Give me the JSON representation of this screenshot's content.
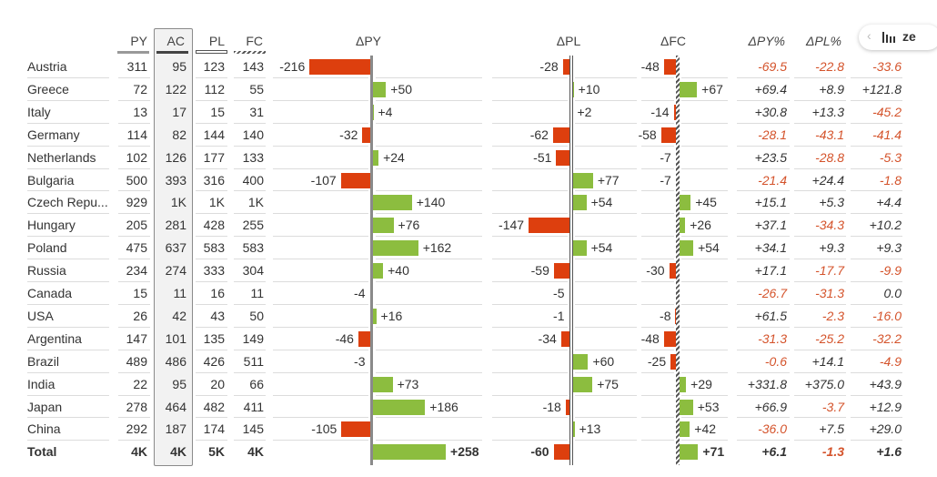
{
  "headers": {
    "py": "PY",
    "ac": "AC",
    "pl": "PL",
    "fc": "FC",
    "dpy": "ΔPY",
    "dpl": "ΔPL",
    "dfc": "ΔFC",
    "dpy_pct": "ΔPY%",
    "dpl_pct": "ΔPL%"
  },
  "toolbar": {
    "back_icon": "chevron-left-icon",
    "logo_icon": "zebra-bars-icon",
    "brand_text": "ze"
  },
  "colors": {
    "negative": "#dd3f0e",
    "positive": "#8cbd3f",
    "negative_text": "#d4532b"
  },
  "rows": [
    {
      "name": "Austria",
      "py": "311",
      "ac": "95",
      "pl": "123",
      "fc": "143",
      "dpy": "-216",
      "dpl": "-28",
      "dfc": "-48",
      "dpy_pct": "-69.5",
      "dpl_pct": "-22.8",
      "dfc_pct": "-33.6"
    },
    {
      "name": "Greece",
      "py": "72",
      "ac": "122",
      "pl": "112",
      "fc": "55",
      "dpy": "+50",
      "dpl": "+10",
      "dfc": "+67",
      "dpy_pct": "+69.4",
      "dpl_pct": "+8.9",
      "dfc_pct": "+121.8"
    },
    {
      "name": "Italy",
      "py": "13",
      "ac": "17",
      "pl": "15",
      "fc": "31",
      "dpy": "+4",
      "dpl": "+2",
      "dfc": "-14",
      "dpy_pct": "+30.8",
      "dpl_pct": "+13.3",
      "dfc_pct": "-45.2"
    },
    {
      "name": "Germany",
      "py": "114",
      "ac": "82",
      "pl": "144",
      "fc": "140",
      "dpy": "-32",
      "dpl": "-62",
      "dfc": "-58",
      "dpy_pct": "-28.1",
      "dpl_pct": "-43.1",
      "dfc_pct": "-41.4"
    },
    {
      "name": "Netherlands",
      "py": "102",
      "ac": "126",
      "pl": "177",
      "fc": "133",
      "dpy": "+24",
      "dpl": "-51",
      "dfc": "-7",
      "dpy_pct": "+23.5",
      "dpl_pct": "-28.8",
      "dfc_pct": "-5.3"
    },
    {
      "name": "Bulgaria",
      "py": "500",
      "ac": "393",
      "pl": "316",
      "fc": "400",
      "dpy": "-107",
      "dpl": "+77",
      "dfc": "-7",
      "dpy_pct": "-21.4",
      "dpl_pct": "+24.4",
      "dfc_pct": "-1.8"
    },
    {
      "name": "Czech Repu...",
      "py": "929",
      "ac": "1K",
      "pl": "1K",
      "fc": "1K",
      "dpy": "+140",
      "dpl": "+54",
      "dfc": "+45",
      "dpy_pct": "+15.1",
      "dpl_pct": "+5.3",
      "dfc_pct": "+4.4"
    },
    {
      "name": "Hungary",
      "py": "205",
      "ac": "281",
      "pl": "428",
      "fc": "255",
      "dpy": "+76",
      "dpl": "-147",
      "dfc": "+26",
      "dpy_pct": "+37.1",
      "dpl_pct": "-34.3",
      "dfc_pct": "+10.2"
    },
    {
      "name": "Poland",
      "py": "475",
      "ac": "637",
      "pl": "583",
      "fc": "583",
      "dpy": "+162",
      "dpl": "+54",
      "dfc": "+54",
      "dpy_pct": "+34.1",
      "dpl_pct": "+9.3",
      "dfc_pct": "+9.3"
    },
    {
      "name": "Russia",
      "py": "234",
      "ac": "274",
      "pl": "333",
      "fc": "304",
      "dpy": "+40",
      "dpl": "-59",
      "dfc": "-30",
      "dpy_pct": "+17.1",
      "dpl_pct": "-17.7",
      "dfc_pct": "-9.9"
    },
    {
      "name": "Canada",
      "py": "15",
      "ac": "11",
      "pl": "16",
      "fc": "11",
      "dpy": "-4",
      "dpl": "-5",
      "dfc": "",
      "dpy_pct": "-26.7",
      "dpl_pct": "-31.3",
      "dfc_pct": "0.0"
    },
    {
      "name": "USA",
      "py": "26",
      "ac": "42",
      "pl": "43",
      "fc": "50",
      "dpy": "+16",
      "dpl": "-1",
      "dfc": "-8",
      "dpy_pct": "+61.5",
      "dpl_pct": "-2.3",
      "dfc_pct": "-16.0"
    },
    {
      "name": "Argentina",
      "py": "147",
      "ac": "101",
      "pl": "135",
      "fc": "149",
      "dpy": "-46",
      "dpl": "-34",
      "dfc": "-48",
      "dpy_pct": "-31.3",
      "dpl_pct": "-25.2",
      "dfc_pct": "-32.2"
    },
    {
      "name": "Brazil",
      "py": "489",
      "ac": "486",
      "pl": "426",
      "fc": "511",
      "dpy": "-3",
      "dpl": "+60",
      "dfc": "-25",
      "dpy_pct": "-0.6",
      "dpl_pct": "+14.1",
      "dfc_pct": "-4.9"
    },
    {
      "name": "India",
      "py": "22",
      "ac": "95",
      "pl": "20",
      "fc": "66",
      "dpy": "+73",
      "dpl": "+75",
      "dfc": "+29",
      "dpy_pct": "+331.8",
      "dpl_pct": "+375.0",
      "dfc_pct": "+43.9"
    },
    {
      "name": "Japan",
      "py": "278",
      "ac": "464",
      "pl": "482",
      "fc": "411",
      "dpy": "+186",
      "dpl": "-18",
      "dfc": "+53",
      "dpy_pct": "+66.9",
      "dpl_pct": "-3.7",
      "dfc_pct": "+12.9"
    },
    {
      "name": "China",
      "py": "292",
      "ac": "187",
      "pl": "174",
      "fc": "145",
      "dpy": "-105",
      "dpl": "+13",
      "dfc": "+42",
      "dpy_pct": "-36.0",
      "dpl_pct": "+7.5",
      "dfc_pct": "+29.0"
    },
    {
      "name": "Total",
      "py": "4K",
      "ac": "4K",
      "pl": "5K",
      "fc": "4K",
      "dpy": "+258",
      "dpl": "-60",
      "dfc": "+71",
      "dpy_pct": "+6.1",
      "dpl_pct": "-1.3",
      "dfc_pct": "+1.6",
      "total": true
    }
  ]
}
